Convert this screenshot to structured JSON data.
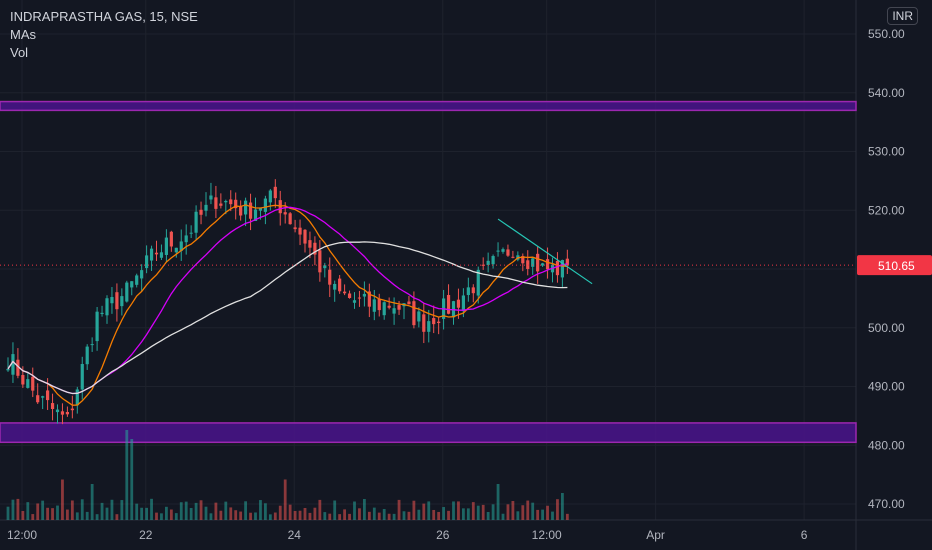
{
  "header": {
    "title": "INDRAPRASTHA GAS, 15, NSE",
    "indicator_1": "MAs",
    "indicator_2": "Vol",
    "currency": "INR"
  },
  "colors": {
    "background": "#131722",
    "grid": "#1e222d",
    "up": "#26a69a",
    "down": "#ef5350",
    "zone_fill": "#4a148c",
    "zone_border": "#9c27b0",
    "ma_fast": "#f57c00",
    "ma_mid": "#d500f9",
    "ma_slow": "#e0e0e0",
    "trendline": "#26c6b5",
    "price_label_bg": "#f23645",
    "axis_text": "#b2b5be"
  },
  "chart_data": {
    "type": "candlestick",
    "symbol": "INDRAPRASTHA GAS",
    "interval": "15",
    "exchange": "NSE",
    "currency": "INR",
    "last_price": 510.65,
    "last_price_label": "510.65",
    "ylim": [
      467.5,
      552.5
    ],
    "y_ticks": [
      {
        "value": 550,
        "label": "550.00"
      },
      {
        "value": 540,
        "label": "540.00"
      },
      {
        "value": 530,
        "label": "530.00"
      },
      {
        "value": 520,
        "label": "520.00"
      },
      {
        "value": 510,
        "label": "510.00"
      },
      {
        "value": 500,
        "label": "500.00"
      },
      {
        "value": 490,
        "label": "490.00"
      },
      {
        "value": 480,
        "label": "480.00"
      },
      {
        "value": 470,
        "label": "470.00"
      }
    ],
    "x_ticks": [
      {
        "bar": 0,
        "label": "12:00"
      },
      {
        "bar": 25,
        "label": "22"
      },
      {
        "bar": 55,
        "label": "24"
      },
      {
        "bar": 85,
        "label": "26"
      },
      {
        "bar": 106,
        "label": "12:00"
      },
      {
        "bar": 128,
        "label": "Apr"
      },
      {
        "bar": 158,
        "label": "6"
      }
    ],
    "zones": [
      {
        "from": 537.0,
        "to": 538.5
      },
      {
        "from": 480.5,
        "to": 483.8
      }
    ],
    "trendline": {
      "from": [
        99,
        518.5
      ],
      "to": [
        118,
        507.5
      ]
    },
    "bars_per_session": 25,
    "bar_count": 115,
    "session_closes": [
      495,
      488,
      484,
      502,
      506,
      513,
      516,
      522,
      520,
      522,
      515,
      506,
      504,
      504,
      501,
      504,
      509,
      514,
      510,
      510
    ],
    "max_volume": 100,
    "volume_spikes": [
      {
        "bar": 24,
        "value": 100
      },
      {
        "bar": 25,
        "value": 90
      },
      {
        "bar": 11,
        "value": 45
      },
      {
        "bar": 17,
        "value": 40
      },
      {
        "bar": 56,
        "value": 45
      },
      {
        "bar": 99,
        "value": 40
      },
      {
        "bar": 112,
        "value": 30
      }
    ],
    "moving_averages": [
      {
        "color_key": "ma_fast",
        "period": 9
      },
      {
        "color_key": "ma_mid",
        "period": 20
      },
      {
        "color_key": "ma_slow",
        "period": 50
      }
    ]
  }
}
